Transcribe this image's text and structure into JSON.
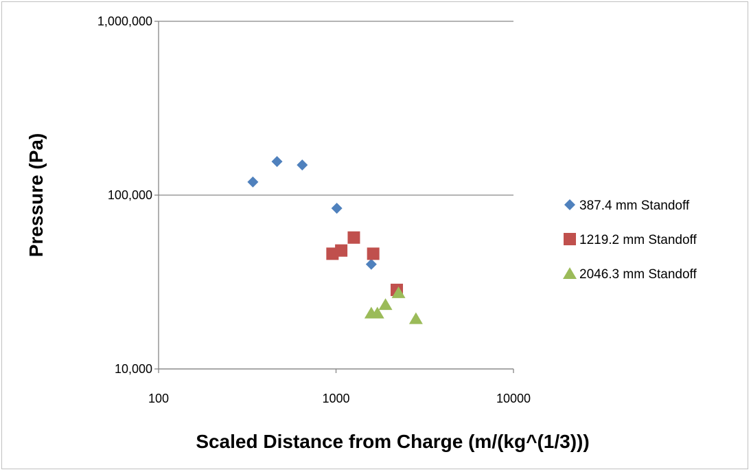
{
  "chart_data": {
    "type": "scatter",
    "xlabel": "Scaled Distance from Charge (m/(kg^(1/3)))",
    "ylabel": "Pressure (Pa)",
    "x_scale": "log",
    "y_scale": "log",
    "xlim": [
      100,
      10000
    ],
    "ylim": [
      10000,
      1000000
    ],
    "x_ticks": [
      "100",
      "1000",
      "10000"
    ],
    "y_ticks": [
      "10,000",
      "100,000",
      "1,000,000"
    ],
    "grid": "horizontal",
    "legend_position": "right",
    "series": [
      {
        "name": "387.4 mm Standoff",
        "marker": "diamond",
        "color": "#4f81bd",
        "points": [
          [
            340,
            119000
          ],
          [
            465,
            156000
          ],
          [
            645,
            149000
          ],
          [
            1010,
            84000
          ],
          [
            1580,
            40000
          ]
        ]
      },
      {
        "name": "1219.2 mm Standoff",
        "marker": "square",
        "color": "#c0504d",
        "points": [
          [
            955,
            46000
          ],
          [
            1070,
            48000
          ],
          [
            1260,
            57000
          ],
          [
            1620,
            46000
          ],
          [
            2200,
            28500
          ]
        ]
      },
      {
        "name": "2046.3 mm Standoff",
        "marker": "triangle",
        "color": "#9bbb59",
        "points": [
          [
            1580,
            21000
          ],
          [
            1710,
            21000
          ],
          [
            1900,
            23500
          ],
          [
            2250,
            27500
          ],
          [
            2820,
            19500
          ]
        ]
      }
    ]
  }
}
